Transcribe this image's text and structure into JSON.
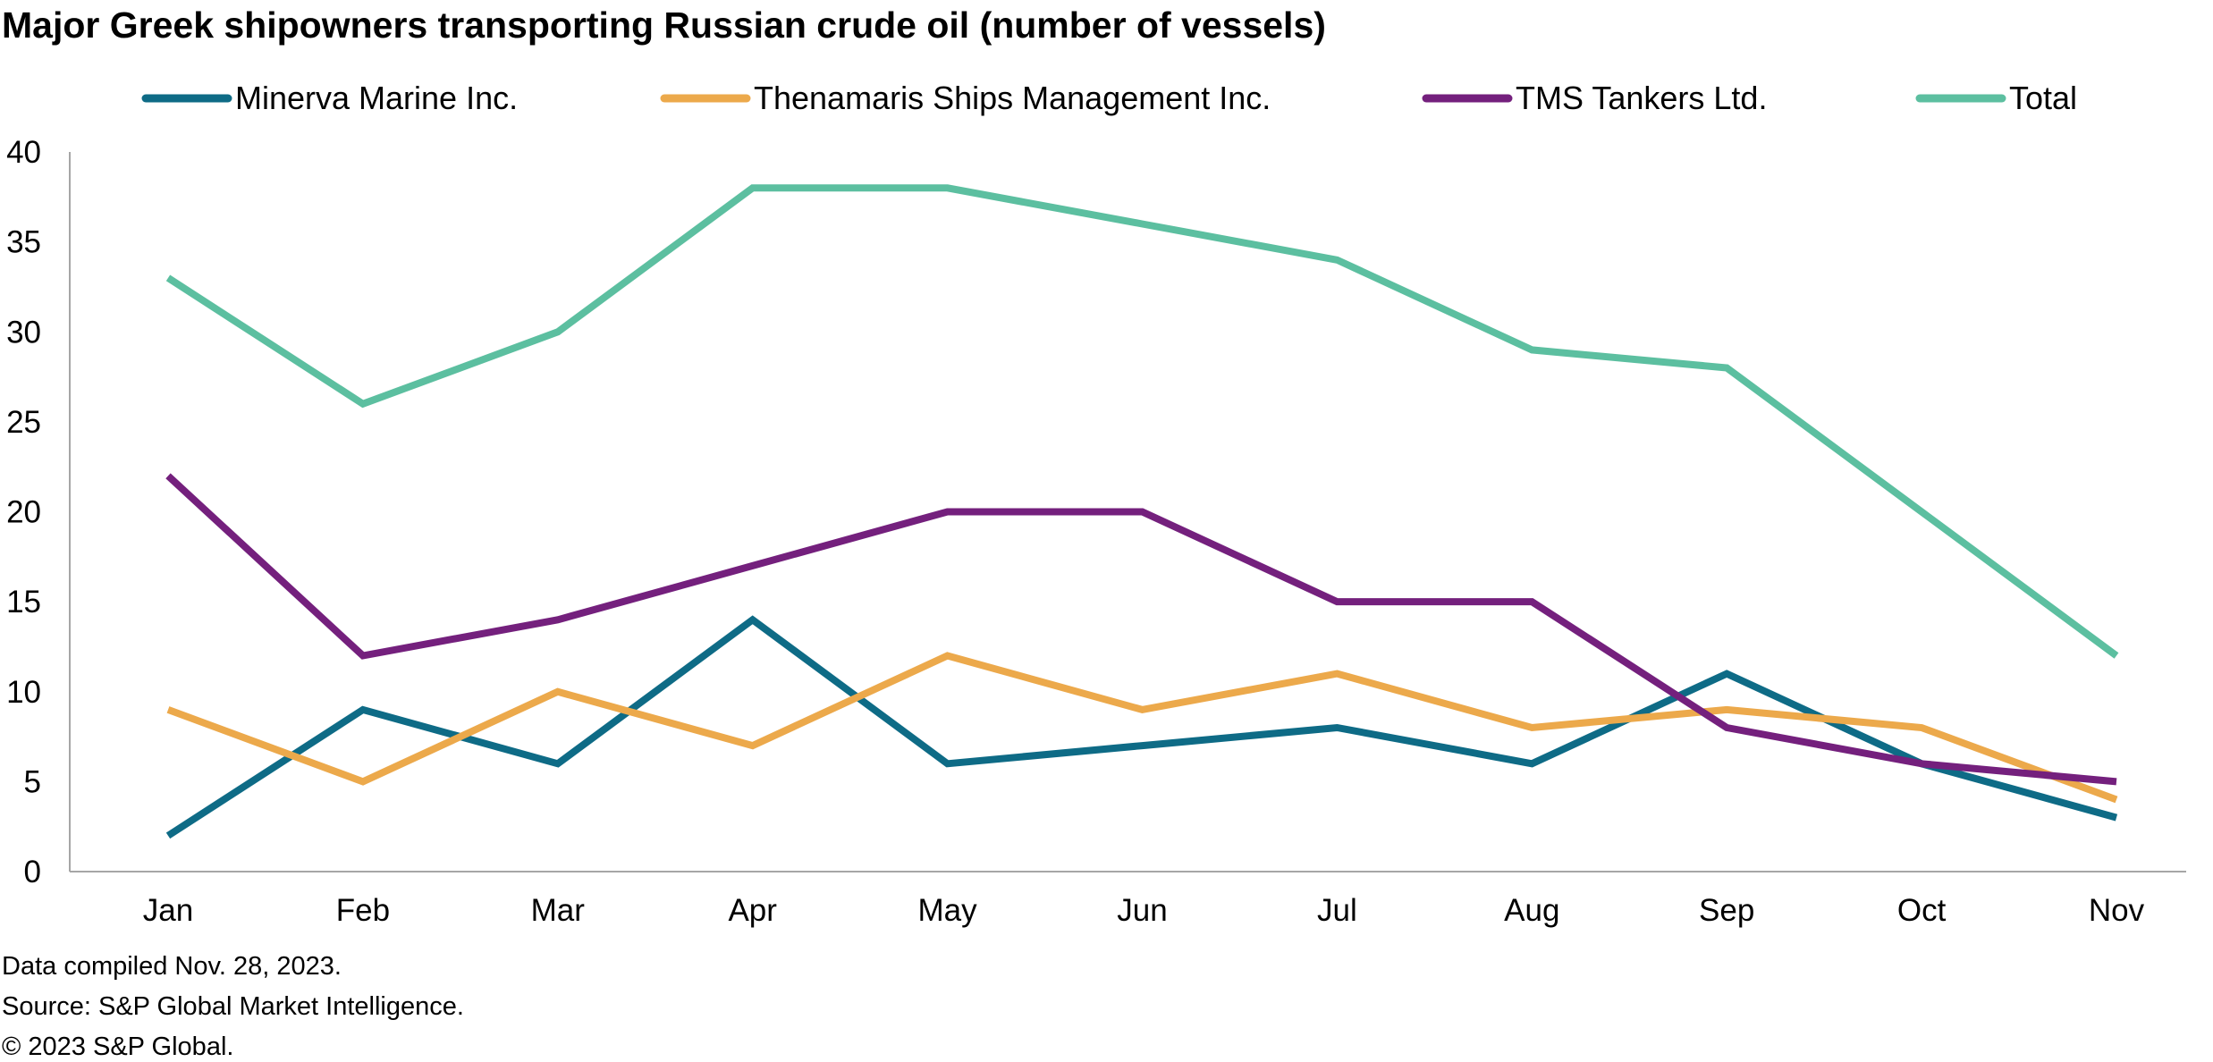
{
  "chart_data": {
    "type": "line",
    "title": "Major Greek shipowners transporting Russian crude oil (number of vessels)",
    "xlabel": "",
    "ylabel": "",
    "categories": [
      "Jan",
      "Feb",
      "Mar",
      "Apr",
      "May",
      "Jun",
      "Jul",
      "Aug",
      "Sep",
      "Oct",
      "Nov"
    ],
    "ylim": [
      0,
      40
    ],
    "yticks": [
      0,
      5,
      10,
      15,
      20,
      25,
      30,
      35,
      40
    ],
    "grid": false,
    "legend_position": "top",
    "series": [
      {
        "name": "Minerva Marine Inc.",
        "color": "#0e6b86",
        "values": [
          2,
          9,
          6,
          14,
          6,
          7,
          8,
          6,
          11,
          6,
          3
        ]
      },
      {
        "name": "Thenamaris Ships Management Inc.",
        "color": "#eca94b",
        "values": [
          9,
          5,
          10,
          7,
          12,
          9,
          11,
          8,
          9,
          8,
          4
        ]
      },
      {
        "name": "TMS Tankers Ltd.",
        "color": "#74207d",
        "values": [
          22,
          12,
          14,
          17,
          20,
          20,
          15,
          15,
          8,
          6,
          5
        ]
      },
      {
        "name": "Total",
        "color": "#5cbfa0",
        "values": [
          33,
          26,
          30,
          38,
          38,
          36,
          34,
          29,
          28,
          20,
          12
        ]
      }
    ]
  },
  "notes": {
    "compiled": "Data compiled Nov. 28, 2023.",
    "source": "Source: S&P Global Market Intelligence.",
    "copyright": "© 2023 S&P Global."
  },
  "colors": {
    "axis": "#a6a6a6"
  }
}
